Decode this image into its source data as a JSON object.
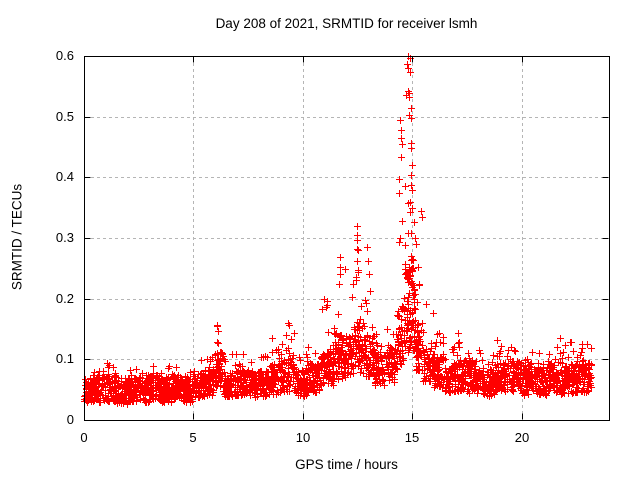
{
  "figure": {
    "background": "#ffffff",
    "axis_color": "#000000",
    "grid_color": "#b5b5b5",
    "marker_color": "#ff0000"
  },
  "chart_data": {
    "type": "scatter",
    "title": "Day 208 of 2021, SRMTID for receiver lsmh",
    "xlabel": "GPS time / hours",
    "ylabel": "SRMTID / TECUs",
    "xlim": [
      0,
      24
    ],
    "ylim": [
      0,
      0.6
    ],
    "xticks": [
      0,
      5,
      10,
      15,
      20
    ],
    "yticks": [
      0,
      0.1,
      0.2,
      0.3,
      0.4,
      0.5,
      0.6
    ],
    "grid": true,
    "legend": "none",
    "marker": "plus",
    "marker_color": "#ff0000",
    "series_name": "SRMTID",
    "data_extent_hours": [
      0,
      23.2
    ],
    "bin_format": [
      "t_start_h",
      "t_end_h",
      "count",
      "y_min",
      "y_max",
      "y_typical"
    ],
    "point_cloud_bins": [
      [
        0.0,
        0.5,
        60,
        0.018,
        0.085,
        0.048
      ],
      [
        0.5,
        1.0,
        62,
        0.02,
        0.09,
        0.05
      ],
      [
        1.0,
        1.5,
        60,
        0.02,
        0.105,
        0.052
      ],
      [
        1.5,
        2.0,
        60,
        0.018,
        0.082,
        0.045
      ],
      [
        2.0,
        2.5,
        60,
        0.022,
        0.09,
        0.05
      ],
      [
        2.5,
        3.0,
        60,
        0.02,
        0.088,
        0.05
      ],
      [
        3.0,
        3.5,
        60,
        0.022,
        0.095,
        0.054
      ],
      [
        3.5,
        4.0,
        60,
        0.02,
        0.09,
        0.05
      ],
      [
        4.0,
        4.5,
        60,
        0.024,
        0.1,
        0.055
      ],
      [
        4.5,
        5.0,
        60,
        0.02,
        0.092,
        0.05
      ],
      [
        5.0,
        5.5,
        60,
        0.028,
        0.1,
        0.058
      ],
      [
        5.5,
        6.0,
        60,
        0.03,
        0.11,
        0.062
      ],
      [
        6.0,
        6.35,
        45,
        0.035,
        0.16,
        0.08
      ],
      [
        6.35,
        7.0,
        75,
        0.03,
        0.11,
        0.06
      ],
      [
        7.0,
        7.5,
        60,
        0.03,
        0.115,
        0.063
      ],
      [
        7.5,
        8.0,
        60,
        0.028,
        0.1,
        0.058
      ],
      [
        8.0,
        8.5,
        60,
        0.03,
        0.11,
        0.06
      ],
      [
        8.5,
        9.0,
        60,
        0.032,
        0.14,
        0.068
      ],
      [
        9.0,
        9.6,
        70,
        0.035,
        0.16,
        0.075
      ],
      [
        9.6,
        10.2,
        70,
        0.03,
        0.11,
        0.06
      ],
      [
        10.2,
        10.8,
        70,
        0.035,
        0.13,
        0.07
      ],
      [
        10.8,
        11.4,
        70,
        0.045,
        0.2,
        0.085
      ],
      [
        11.4,
        11.8,
        55,
        0.05,
        0.27,
        0.105
      ],
      [
        11.8,
        12.3,
        60,
        0.055,
        0.25,
        0.105
      ],
      [
        12.3,
        12.7,
        55,
        0.06,
        0.32,
        0.12
      ],
      [
        12.7,
        13.2,
        60,
        0.055,
        0.285,
        0.105
      ],
      [
        13.2,
        13.8,
        70,
        0.045,
        0.165,
        0.085
      ],
      [
        13.8,
        14.3,
        60,
        0.05,
        0.2,
        0.09
      ],
      [
        14.3,
        14.65,
        50,
        0.07,
        0.5,
        0.14
      ],
      [
        14.65,
        15.1,
        85,
        0.075,
        0.6,
        0.19
      ],
      [
        15.1,
        15.5,
        55,
        0.065,
        0.35,
        0.12
      ],
      [
        15.5,
        16.0,
        60,
        0.05,
        0.2,
        0.088
      ],
      [
        16.0,
        16.5,
        60,
        0.04,
        0.145,
        0.078
      ],
      [
        16.5,
        17.0,
        60,
        0.032,
        0.12,
        0.068
      ],
      [
        17.0,
        17.6,
        70,
        0.035,
        0.145,
        0.073
      ],
      [
        17.6,
        18.2,
        70,
        0.035,
        0.13,
        0.068
      ],
      [
        18.2,
        18.8,
        70,
        0.03,
        0.12,
        0.063
      ],
      [
        18.8,
        19.4,
        70,
        0.035,
        0.135,
        0.07
      ],
      [
        19.4,
        20.0,
        70,
        0.035,
        0.14,
        0.072
      ],
      [
        20.0,
        20.6,
        70,
        0.03,
        0.125,
        0.066
      ],
      [
        20.6,
        21.2,
        70,
        0.03,
        0.12,
        0.064
      ],
      [
        21.2,
        21.8,
        70,
        0.035,
        0.14,
        0.072
      ],
      [
        21.8,
        22.4,
        70,
        0.032,
        0.13,
        0.068
      ],
      [
        22.4,
        23.2,
        95,
        0.035,
        0.132,
        0.07
      ]
    ],
    "notable_points": [
      [
        14.81,
        0.6
      ],
      [
        14.9,
        0.596
      ],
      [
        14.81,
        0.58
      ],
      [
        14.91,
        0.574
      ],
      [
        14.8,
        0.543
      ],
      [
        14.87,
        0.539
      ],
      [
        14.72,
        0.536
      ],
      [
        14.85,
        0.533
      ],
      [
        14.94,
        0.514
      ],
      [
        14.85,
        0.502
      ],
      [
        14.97,
        0.498
      ],
      [
        14.44,
        0.494
      ],
      [
        14.47,
        0.478
      ],
      [
        14.51,
        0.465
      ],
      [
        14.94,
        0.457
      ],
      [
        14.96,
        0.449
      ],
      [
        14.48,
        0.434
      ],
      [
        14.99,
        0.42
      ],
      [
        14.93,
        0.404
      ],
      [
        14.4,
        0.398
      ],
      [
        14.97,
        0.387
      ],
      [
        15.0,
        0.379
      ],
      [
        14.42,
        0.374
      ],
      [
        14.88,
        0.359
      ],
      [
        14.92,
        0.343
      ],
      [
        15.08,
        0.327
      ],
      [
        14.97,
        0.308
      ],
      [
        15.12,
        0.3
      ],
      [
        14.42,
        0.294
      ],
      [
        12.48,
        0.32
      ],
      [
        12.5,
        0.305
      ],
      [
        12.46,
        0.296
      ],
      [
        12.52,
        0.28
      ],
      [
        12.49,
        0.262
      ],
      [
        12.53,
        0.247
      ],
      [
        12.44,
        0.231
      ],
      [
        11.68,
        0.268
      ],
      [
        11.7,
        0.252
      ],
      [
        11.72,
        0.24
      ],
      [
        11.66,
        0.225
      ],
      [
        12.95,
        0.285
      ],
      [
        12.98,
        0.262
      ],
      [
        13.01,
        0.241
      ],
      [
        15.28,
        0.252
      ],
      [
        15.33,
        0.222
      ],
      [
        16.4,
        0.137
      ],
      [
        6.08,
        0.157
      ],
      [
        6.14,
        0.146
      ],
      [
        9.33,
        0.16
      ],
      [
        11.12,
        0.196
      ],
      [
        11.04,
        0.186
      ]
    ]
  }
}
